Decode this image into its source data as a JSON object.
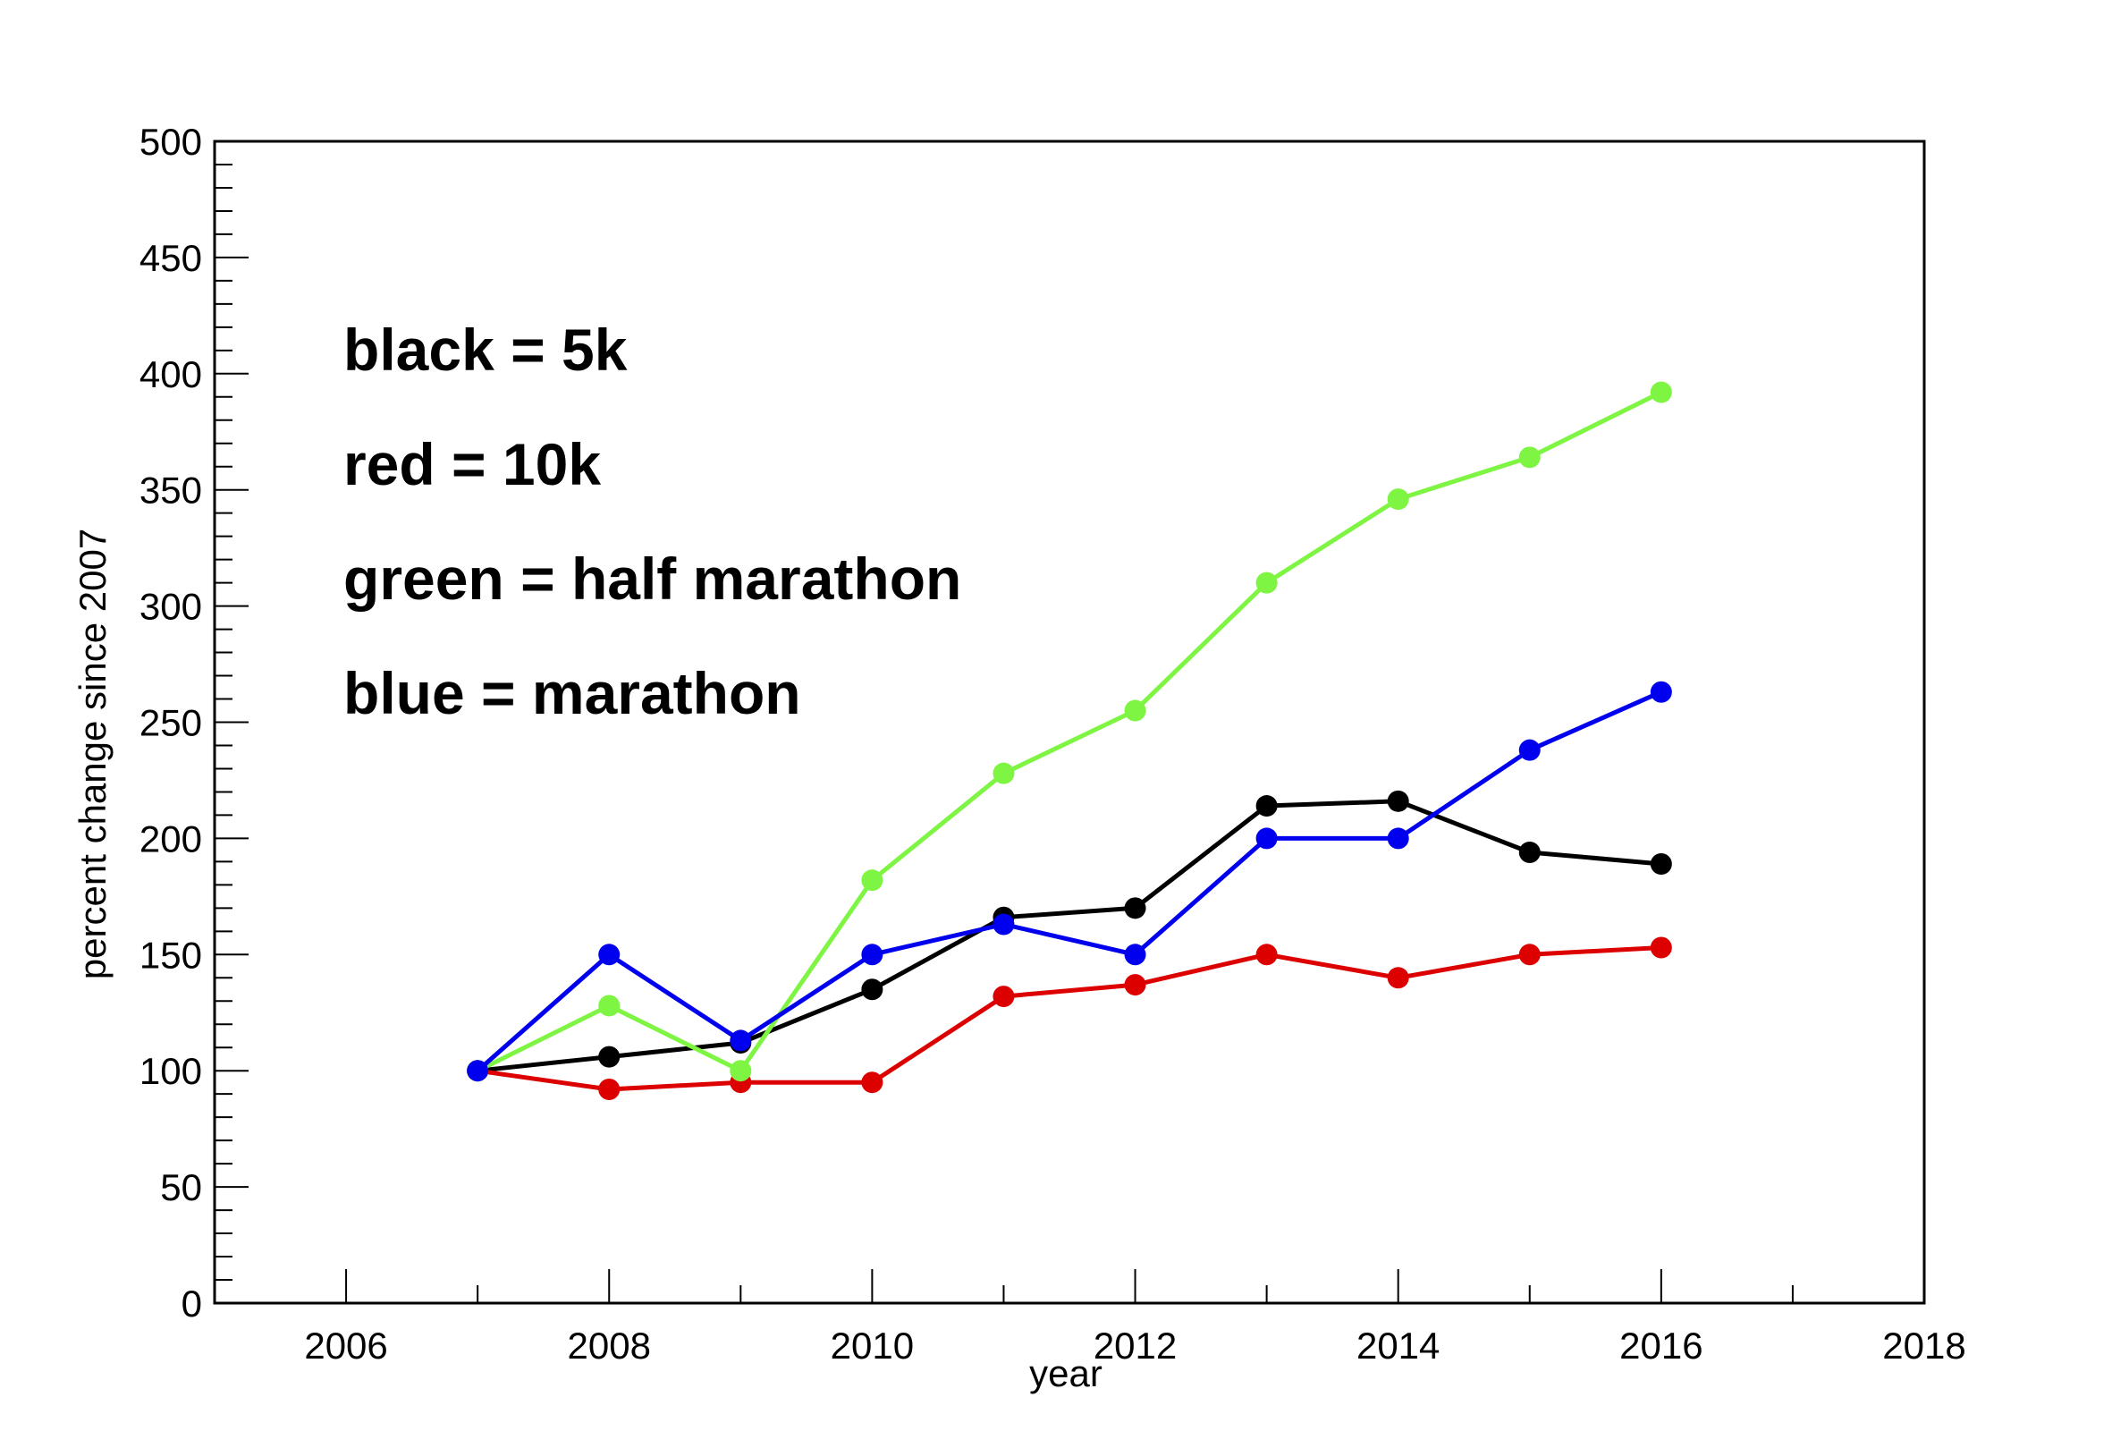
{
  "chart_data": {
    "type": "line",
    "title": "",
    "xlabel": "year",
    "ylabel": "percent change since 2007",
    "xlim": [
      2005,
      2018
    ],
    "ylim": [
      0,
      500
    ],
    "x_ticks": [
      2006,
      2008,
      2010,
      2012,
      2014,
      2016,
      2018
    ],
    "y_ticks": [
      0,
      50,
      100,
      150,
      200,
      250,
      300,
      350,
      400,
      450,
      500
    ],
    "grid": false,
    "notes": [
      "black = 5k",
      "red = 10k",
      "green = half marathon",
      "blue = marathon"
    ],
    "series": [
      {
        "color": "#000000",
        "x": [
          2007,
          2008,
          2009,
          2010,
          2011,
          2012,
          2013,
          2014,
          2015,
          2016
        ],
        "y": [
          100,
          106,
          112,
          135,
          166,
          170,
          214,
          216,
          194,
          189
        ]
      },
      {
        "color": "#dd0000",
        "x": [
          2007,
          2008,
          2009,
          2010,
          2011,
          2012,
          2013,
          2014,
          2015,
          2016
        ],
        "y": [
          100,
          92,
          95,
          95,
          132,
          137,
          150,
          140,
          150,
          153
        ]
      },
      {
        "color": "#7ef542",
        "x": [
          2007,
          2008,
          2009,
          2010,
          2011,
          2012,
          2013,
          2014,
          2015,
          2016
        ],
        "y": [
          100,
          128,
          100,
          182,
          228,
          255,
          310,
          346,
          364,
          392
        ]
      },
      {
        "color": "#0000ee",
        "x": [
          2007,
          2008,
          2009,
          2010,
          2011,
          2012,
          2013,
          2014,
          2015,
          2016
        ],
        "y": [
          100,
          150,
          113,
          150,
          163,
          150,
          200,
          200,
          238,
          263
        ]
      }
    ]
  }
}
